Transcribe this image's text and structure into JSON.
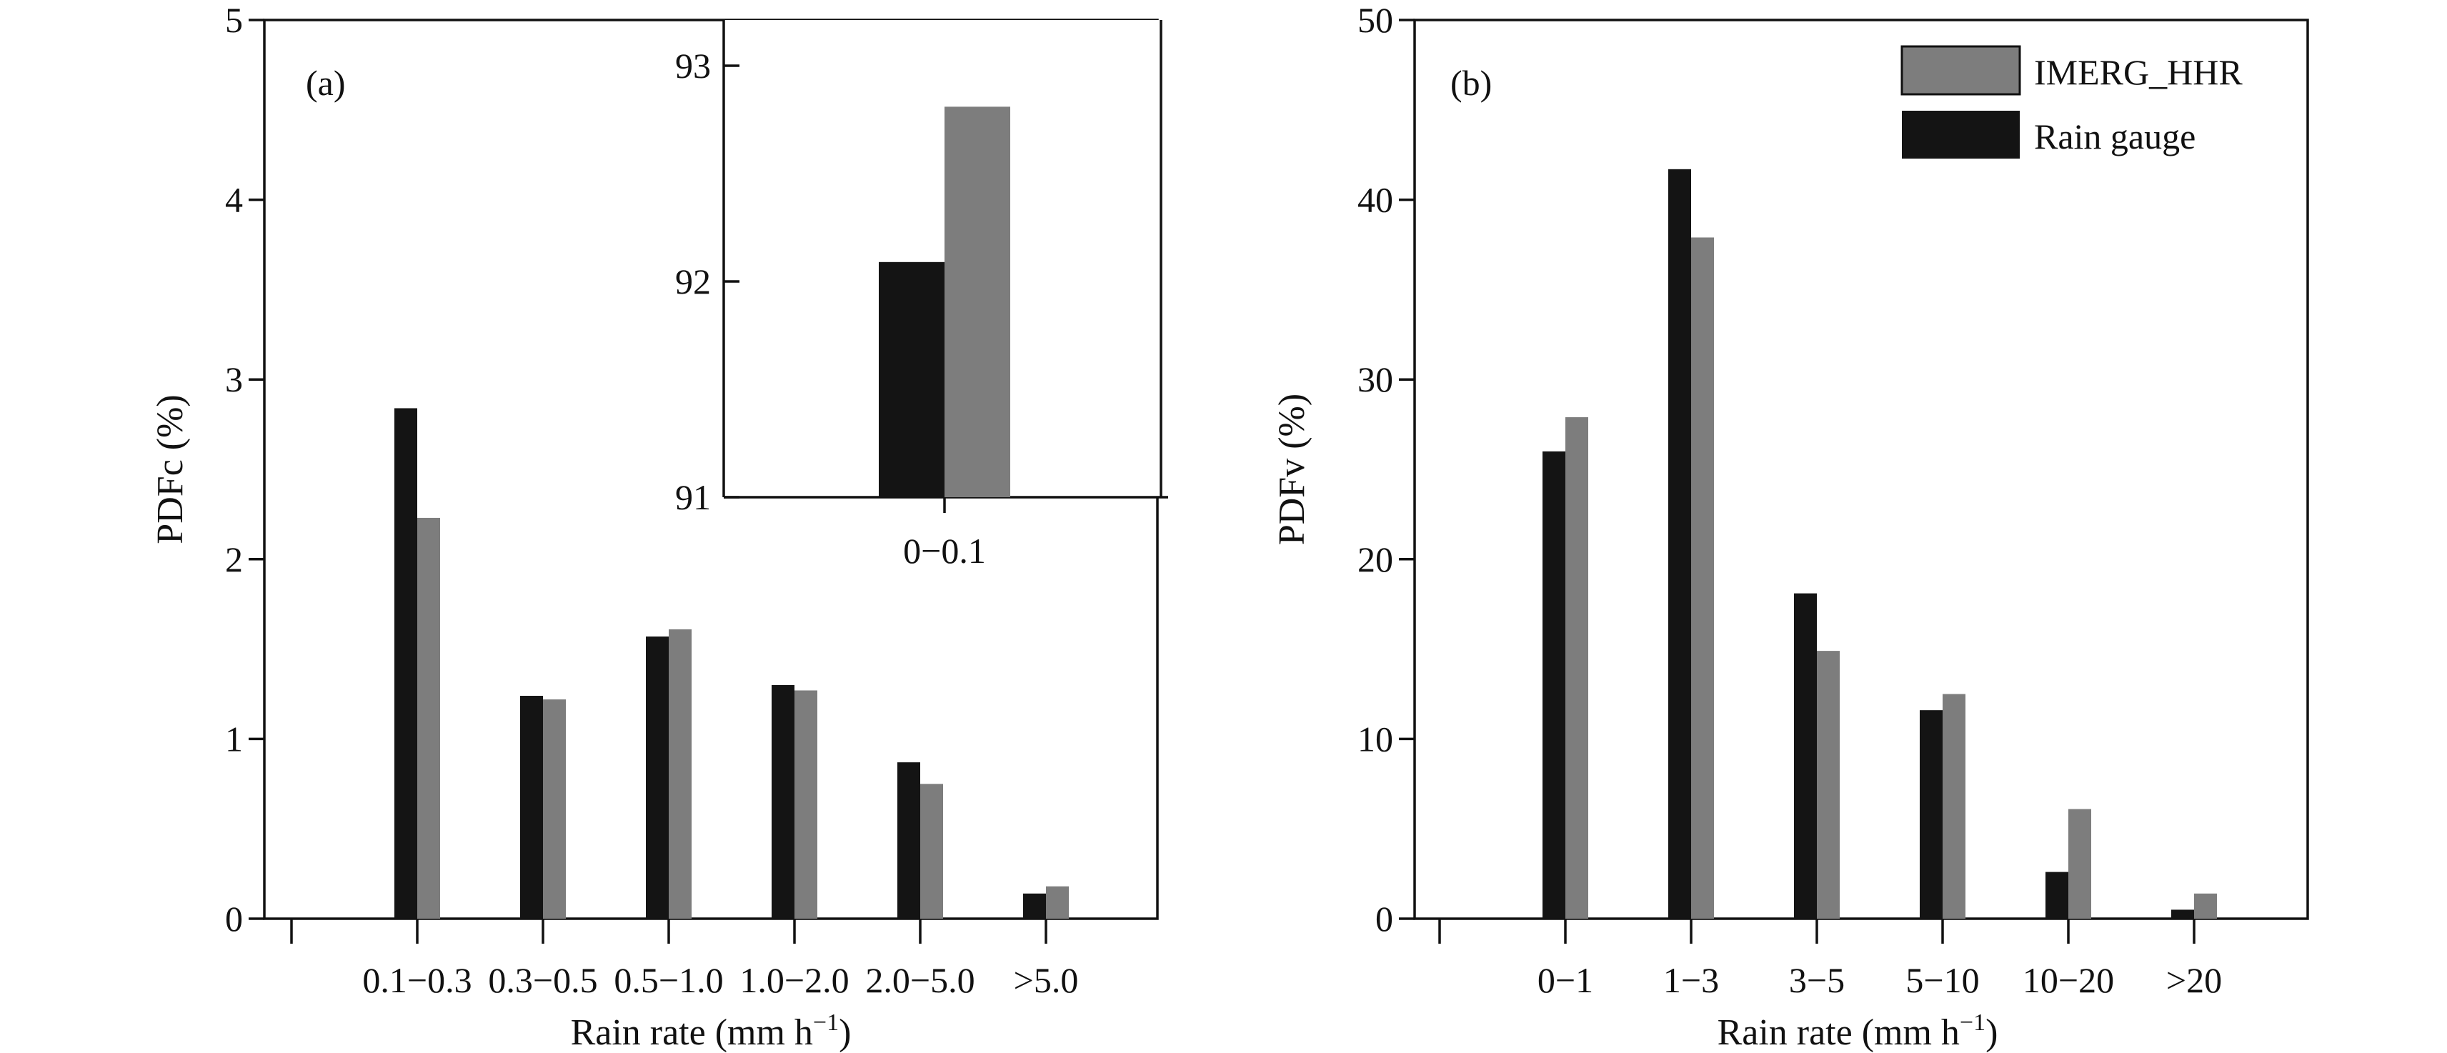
{
  "colors": {
    "rain_gauge": "#141414",
    "imerg": "#7d7d7d",
    "axis": "#111111"
  },
  "legend": [
    {
      "name": "IMERG_HHR",
      "color_key": "imerg"
    },
    {
      "name": "Rain gauge",
      "color_key": "rain_gauge"
    }
  ],
  "chart_data": [
    {
      "panel": "(a)",
      "type": "bar",
      "title": "",
      "xlabel": "Rain rate (mm h",
      "xlabel_sup": "−1",
      "xlabel_close": ")",
      "ylabel": "PDFc (%)",
      "ylim": [
        0,
        5
      ],
      "yticks": [
        "0",
        "1",
        "2",
        "3",
        "4",
        "5"
      ],
      "categories": [
        "0.1−0.3",
        "0.3−0.5",
        "0.5−1.0",
        "1.0−2.0",
        "2.0−5.0",
        ">5.0"
      ],
      "series": [
        {
          "name": "Rain gauge",
          "values": [
            2.84,
            1.24,
            1.57,
            1.3,
            0.87,
            0.14
          ]
        },
        {
          "name": "IMERG_HHR",
          "values": [
            2.23,
            1.22,
            1.61,
            1.27,
            0.75,
            0.18
          ]
        }
      ],
      "inset": {
        "categories": [
          "0−0.1"
        ],
        "ylim": [
          91,
          93.2
        ],
        "yticks": [
          "91",
          "92",
          "93"
        ],
        "series": [
          {
            "name": "Rain gauge",
            "values": [
              92.09
            ]
          },
          {
            "name": "IMERG_HHR",
            "values": [
              92.81
            ]
          }
        ]
      }
    },
    {
      "panel": "(b)",
      "type": "bar",
      "title": "",
      "xlabel": "Rain rate (mm h",
      "xlabel_sup": "−1",
      "xlabel_close": ")",
      "ylabel": "PDFv (%)",
      "ylim": [
        0,
        50
      ],
      "yticks": [
        "0",
        "10",
        "20",
        "30",
        "40",
        "50"
      ],
      "categories": [
        "0−1",
        "1−3",
        "3−5",
        "5−10",
        "10−20",
        ">20"
      ],
      "series": [
        {
          "name": "Rain gauge",
          "values": [
            26.0,
            41.7,
            18.1,
            11.6,
            2.6,
            0.5
          ]
        },
        {
          "name": "IMERG_HHR",
          "values": [
            27.9,
            37.9,
            14.9,
            12.5,
            6.1,
            1.4
          ]
        }
      ]
    }
  ]
}
